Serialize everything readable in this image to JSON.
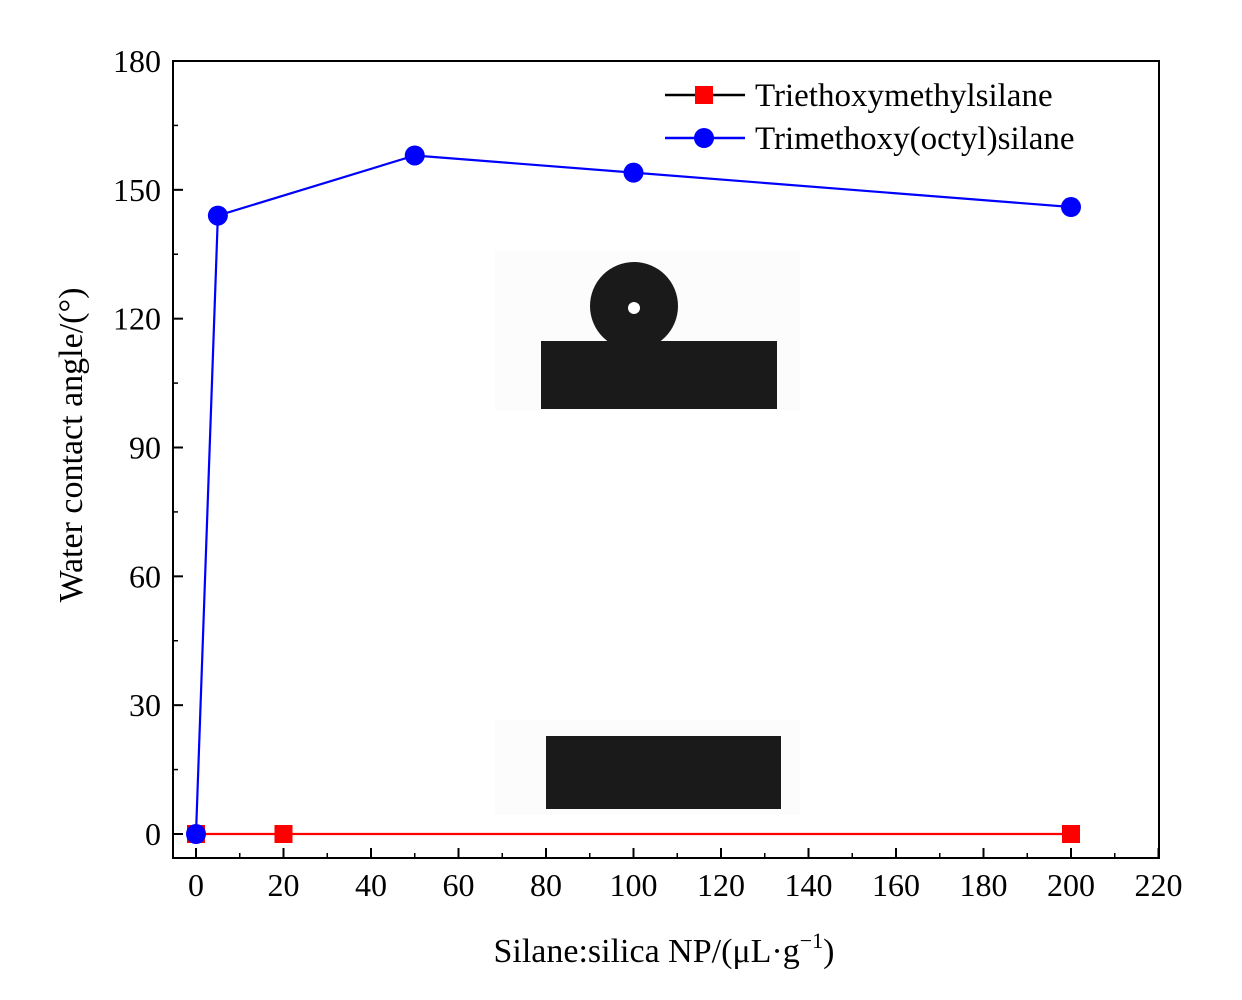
{
  "chart_data": {
    "type": "line",
    "xlabel": "Silane:silica NP/(μL·g",
    "xlabel_sup": "−1",
    "xlabel_tail": ")",
    "ylabel": "Water contact angle/(°)",
    "xlim": [
      -5,
      220
    ],
    "ylim": [
      -6,
      180
    ],
    "xticks": [
      0,
      20,
      40,
      60,
      80,
      100,
      120,
      140,
      160,
      180,
      200,
      220
    ],
    "yticks": [
      0,
      30,
      60,
      90,
      120,
      150,
      180
    ],
    "grid": false,
    "legend_position": "top-right",
    "series": [
      {
        "name": "Triethoxymethylsilane",
        "color": "#ff0000",
        "marker": "square",
        "x": [
          0,
          20,
          200
        ],
        "y": [
          0,
          0,
          0
        ]
      },
      {
        "name": "Trimethoxy(octyl)silane",
        "color": "#0000ff",
        "marker": "circle",
        "x": [
          0,
          5,
          50,
          100,
          200
        ],
        "y": [
          0,
          144,
          158,
          154,
          146
        ]
      }
    ],
    "insets": [
      {
        "name": "droplet-photo-inset",
        "description_icon": "water-droplet-on-substrate-photo"
      },
      {
        "name": "flat-substrate-photo-inset",
        "description_icon": "substrate-photo"
      }
    ]
  }
}
